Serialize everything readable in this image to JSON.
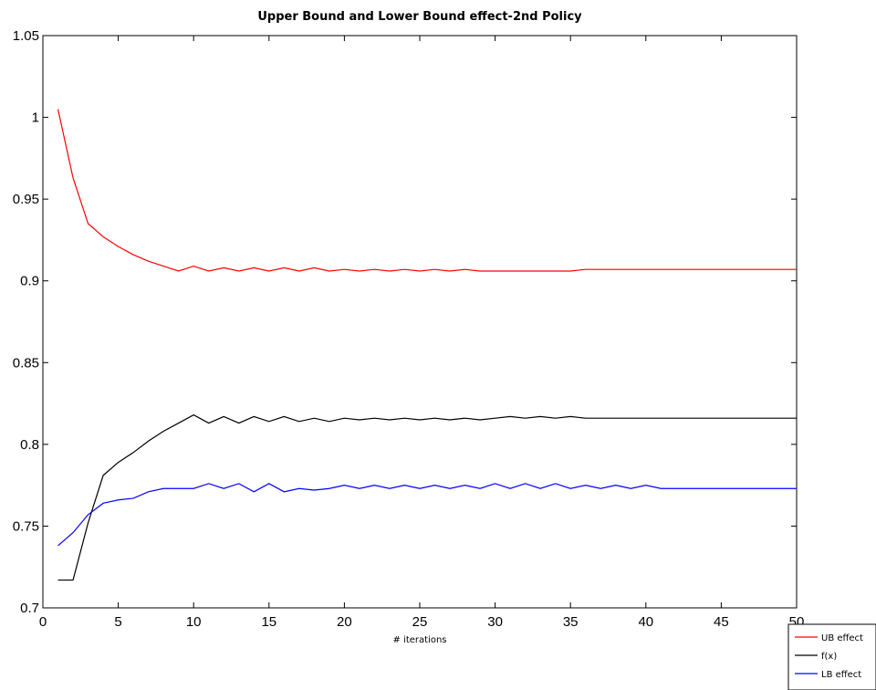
{
  "chart_data": {
    "type": "line",
    "title": "Upper Bound and Lower Bound effect-2nd Policy",
    "xlabel": "# iterations",
    "ylabel": "",
    "xlim": [
      0,
      50
    ],
    "ylim": [
      0.7,
      1.05
    ],
    "xticks": [
      0,
      5,
      10,
      15,
      20,
      25,
      30,
      35,
      40,
      45,
      50
    ],
    "yticks": [
      0.7,
      0.75,
      0.8,
      0.85,
      0.9,
      0.95,
      1,
      1.05
    ],
    "x": [
      1,
      2,
      3,
      4,
      5,
      6,
      7,
      8,
      9,
      10,
      11,
      12,
      13,
      14,
      15,
      16,
      17,
      18,
      19,
      20,
      21,
      22,
      23,
      24,
      25,
      26,
      27,
      28,
      29,
      30,
      31,
      32,
      33,
      34,
      35,
      36,
      37,
      38,
      39,
      40,
      41,
      42,
      43,
      44,
      45,
      46,
      47,
      48,
      49,
      50
    ],
    "series": [
      {
        "name": "UB effect",
        "color": "#ff0000",
        "values": [
          1.005,
          0.963,
          0.935,
          0.927,
          0.921,
          0.916,
          0.912,
          0.909,
          0.906,
          0.909,
          0.906,
          0.908,
          0.906,
          0.908,
          0.906,
          0.908,
          0.906,
          0.908,
          0.906,
          0.907,
          0.906,
          0.907,
          0.906,
          0.907,
          0.906,
          0.907,
          0.906,
          0.907,
          0.906,
          0.906,
          0.906,
          0.906,
          0.906,
          0.906,
          0.906,
          0.907,
          0.907,
          0.907,
          0.907,
          0.907,
          0.907,
          0.907,
          0.907,
          0.907,
          0.907,
          0.907,
          0.907,
          0.907,
          0.907,
          0.907
        ]
      },
      {
        "name": "f(x)",
        "color": "#000000",
        "values": [
          0.717,
          0.717,
          0.752,
          0.781,
          0.789,
          0.795,
          0.802,
          0.808,
          0.813,
          0.818,
          0.813,
          0.817,
          0.813,
          0.817,
          0.814,
          0.817,
          0.814,
          0.816,
          0.814,
          0.816,
          0.815,
          0.816,
          0.815,
          0.816,
          0.815,
          0.816,
          0.815,
          0.816,
          0.815,
          0.816,
          0.817,
          0.816,
          0.817,
          0.816,
          0.817,
          0.816,
          0.816,
          0.816,
          0.816,
          0.816,
          0.816,
          0.816,
          0.816,
          0.816,
          0.816,
          0.816,
          0.816,
          0.816,
          0.816,
          0.816
        ]
      },
      {
        "name": "LB effect",
        "color": "#0000ff",
        "values": [
          0.738,
          0.746,
          0.757,
          0.764,
          0.766,
          0.767,
          0.771,
          0.773,
          0.773,
          0.773,
          0.776,
          0.773,
          0.776,
          0.771,
          0.776,
          0.771,
          0.773,
          0.772,
          0.773,
          0.775,
          0.773,
          0.775,
          0.773,
          0.775,
          0.773,
          0.775,
          0.773,
          0.775,
          0.773,
          0.776,
          0.773,
          0.776,
          0.773,
          0.776,
          0.773,
          0.775,
          0.773,
          0.775,
          0.773,
          0.775,
          0.773,
          0.773,
          0.773,
          0.773,
          0.773,
          0.773,
          0.773,
          0.773,
          0.773,
          0.773
        ]
      }
    ],
    "grid": false,
    "legend_position": "bottom-right, outside plot"
  }
}
